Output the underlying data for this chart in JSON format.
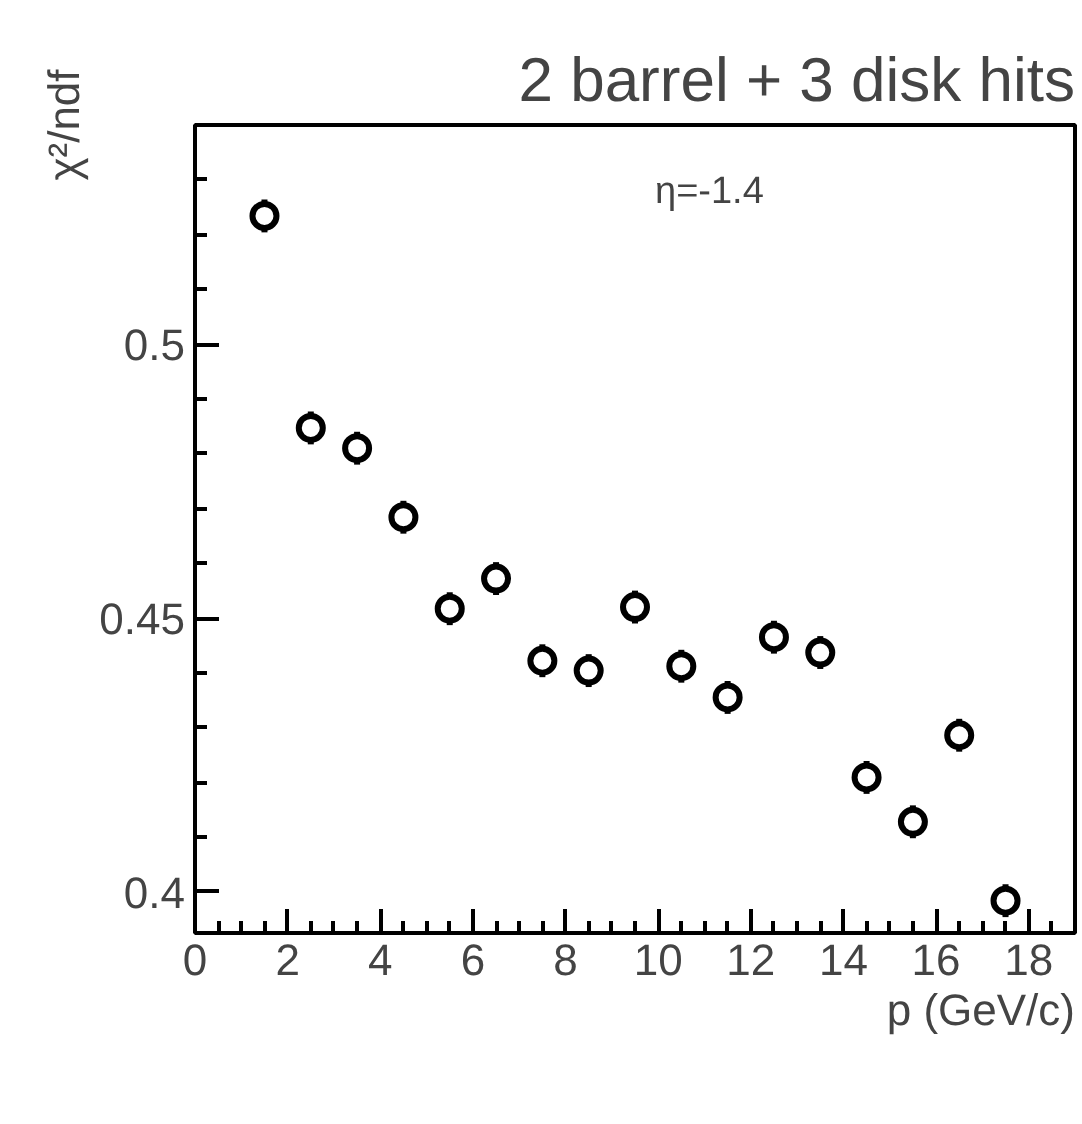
{
  "chart_data": {
    "type": "scatter",
    "title": "2 barrel + 3 disk hits",
    "xlabel": "p (GeV/c)",
    "ylabel": "χ²/ndf",
    "annotations": [
      "η=-1.4"
    ],
    "x": [
      1.5,
      2.5,
      3.5,
      4.5,
      5.5,
      6.5,
      7.5,
      8.5,
      9.5,
      10.5,
      11.5,
      12.5,
      13.5,
      14.5,
      15.5,
      16.5,
      17.5
    ],
    "series": [
      {
        "color": "#000000",
        "values": [
          0.5234,
          0.4847,
          0.481,
          0.4684,
          0.4517,
          0.4572,
          0.4422,
          0.4404,
          0.452,
          0.4412,
          0.4355,
          0.4465,
          0.4437,
          0.4209,
          0.4128,
          0.4286,
          0.3984
        ],
        "errors": [
          0.003,
          0.003,
          0.003,
          0.003,
          0.003,
          0.003,
          0.003,
          0.003,
          0.003,
          0.003,
          0.003,
          0.003,
          0.003,
          0.003,
          0.003,
          0.003,
          0.003
        ]
      }
    ],
    "xlim": [
      0,
      19
    ],
    "ylim": [
      0.3925,
      0.54
    ],
    "xticks": [
      0,
      2,
      4,
      6,
      8,
      10,
      12,
      14,
      16,
      18
    ],
    "yticks": [
      0.4,
      0.45,
      0.5
    ],
    "marker": "circle",
    "grid": false
  }
}
